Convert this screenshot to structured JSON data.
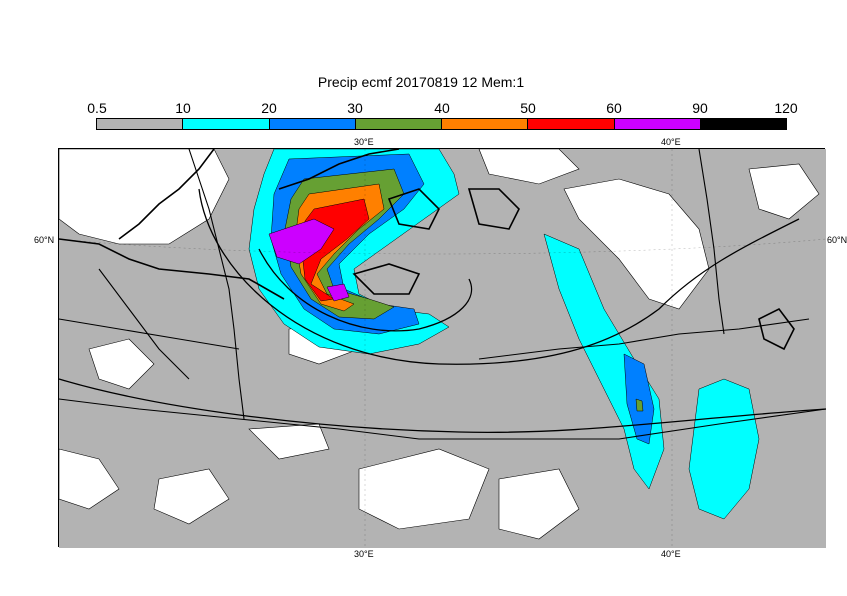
{
  "title": "Precip ecmf 20170819 12 Mem:1",
  "colorbar": {
    "labels": [
      "0.5",
      "10",
      "20",
      "30",
      "40",
      "50",
      "60",
      "90",
      "120"
    ],
    "colors": [
      "#b3b3b3",
      "#00ffff",
      "#0080ff",
      "#66a033",
      "#ff8000",
      "#ff0000",
      "#cc00ff",
      "#000000"
    ]
  },
  "map": {
    "background_color": "#b3b3b3",
    "lon_ticks_top": [
      "30°E",
      "40°E"
    ],
    "lon_ticks_bottom": [
      "30°E",
      "40°E"
    ],
    "lat_ticks_left": [
      "60°N"
    ],
    "lat_ticks_right": [
      "60°N"
    ]
  }
}
